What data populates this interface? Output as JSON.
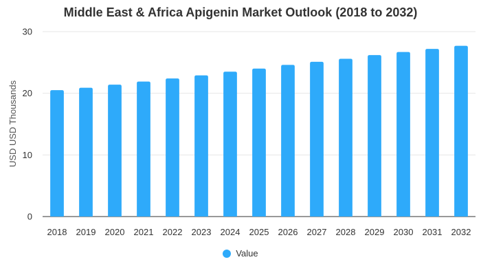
{
  "chart_data": {
    "type": "bar",
    "title": "Middle East & Africa Apigenin Market Outlook (2018 to 2032)",
    "xlabel": "",
    "ylabel": "USD USD Thousands",
    "categories": [
      "2018",
      "2019",
      "2020",
      "2021",
      "2022",
      "2023",
      "2024",
      "2025",
      "2026",
      "2027",
      "2028",
      "2029",
      "2030",
      "2031",
      "2032"
    ],
    "series": [
      {
        "name": "Value",
        "values": [
          20.5,
          20.9,
          21.4,
          21.9,
          22.4,
          22.9,
          23.5,
          24.0,
          24.6,
          25.1,
          25.6,
          26.2,
          26.7,
          27.2,
          27.7
        ]
      }
    ],
    "ylim": [
      0,
      30
    ],
    "yticks": [
      0,
      10,
      20,
      30
    ],
    "grid": true,
    "legend_position": "bottom-center",
    "bar_color": "#2eaafa"
  }
}
